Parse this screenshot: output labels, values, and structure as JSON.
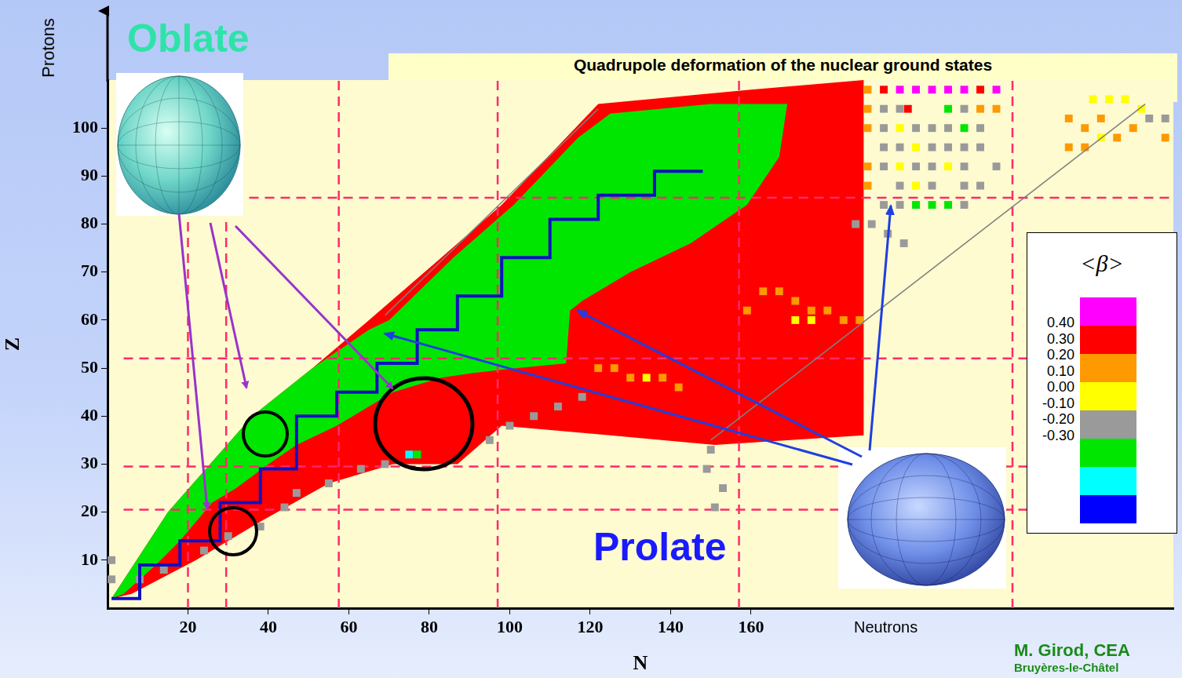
{
  "chart_data": {
    "type": "scatter",
    "title": "Quadrupole deformation of the nuclear ground states",
    "x_label": "N",
    "y_label": "Z",
    "xlim": [
      0,
      265
    ],
    "ylim": [
      0,
      110
    ],
    "xticks": [
      20,
      40,
      60,
      80,
      100,
      120,
      140,
      160
    ],
    "yticks": [
      10,
      20,
      30,
      40,
      50,
      60,
      70,
      80,
      90,
      100
    ],
    "grid": false,
    "annotations": [
      "Oblate",
      "Prolate",
      "Protons",
      "Neutrons",
      "M. Girod, CEA",
      "Bruyères-le-Châtel"
    ],
    "colorbar": {
      "title": "<β>",
      "colors": [
        "#ff00ff",
        "#ff0000",
        "#ff9900",
        "#ffff00",
        "#9a9a9a",
        "#00e600",
        "#00ffff",
        "#0000ff"
      ],
      "ticks": [
        {
          "value": 0.4,
          "label": "0.40"
        },
        {
          "value": 0.3,
          "label": "0.30"
        },
        {
          "value": 0.2,
          "label": "0.20"
        },
        {
          "value": 0.1,
          "label": "0.10"
        },
        {
          "value": 0,
          "label": "0.00"
        },
        {
          "value": -0.1,
          "label": "-0.10"
        },
        {
          "value": -0.2,
          "label": "-0.20"
        },
        {
          "value": -0.3,
          "label": "-0.30"
        }
      ]
    },
    "series": [
      {
        "type": "area",
        "color": "#ff0000",
        "values": [
          [
            1,
            2
          ],
          [
            15,
            20
          ],
          [
            36,
            40
          ],
          [
            51,
            50
          ],
          [
            65,
            60
          ],
          [
            83,
            73
          ],
          [
            98,
            84
          ],
          [
            114,
            98
          ],
          [
            122,
            105
          ],
          [
            160,
            108
          ],
          [
            188,
            110
          ],
          [
            188,
            36
          ],
          [
            151,
            34
          ],
          [
            125,
            36
          ],
          [
            98,
            38
          ],
          [
            87,
            30
          ],
          [
            71,
            30
          ],
          [
            55,
            26
          ],
          [
            38,
            18
          ],
          [
            22,
            10
          ],
          [
            6,
            3
          ]
        ]
      },
      {
        "type": "area",
        "color": "#00e600",
        "values": [
          [
            1,
            2
          ],
          [
            15,
            20
          ],
          [
            36,
            40
          ],
          [
            51,
            50
          ],
          [
            65,
            58
          ],
          [
            70,
            60
          ],
          [
            86,
            73
          ],
          [
            101,
            84
          ],
          [
            117,
            98
          ],
          [
            125,
            103
          ],
          [
            150,
            105
          ],
          [
            169,
            105
          ],
          [
            167,
            94
          ],
          [
            159,
            84
          ],
          [
            145,
            76
          ],
          [
            130,
            70
          ],
          [
            118,
            64
          ],
          [
            115,
            62
          ],
          [
            114,
            51
          ],
          [
            102,
            50
          ],
          [
            91,
            49
          ],
          [
            83,
            48
          ],
          [
            71,
            45
          ],
          [
            65,
            42
          ],
          [
            57,
            38
          ],
          [
            47,
            34
          ],
          [
            40,
            30
          ],
          [
            32,
            25
          ],
          [
            26,
            22
          ],
          [
            18,
            14
          ],
          [
            12,
            9
          ],
          [
            4,
            3
          ]
        ]
      },
      {
        "type": "line",
        "color": "#1010c0",
        "line_style": "stepped",
        "values": [
          [
            1,
            2
          ],
          [
            8,
            9
          ],
          [
            18,
            14
          ],
          [
            28,
            22
          ],
          [
            38,
            29
          ],
          [
            47,
            40
          ],
          [
            57,
            45
          ],
          [
            67,
            51
          ],
          [
            77,
            58
          ],
          [
            87,
            65
          ],
          [
            98,
            73
          ],
          [
            110,
            81
          ],
          [
            122,
            86
          ],
          [
            136,
            91
          ],
          [
            148,
            91
          ]
        ]
      },
      {
        "type": "line",
        "color": "#808080",
        "line_style": "solid",
        "values": [
          [
            69,
            61
          ],
          [
            122,
            104
          ]
        ]
      },
      {
        "type": "line",
        "color": "#808080",
        "line_style": "solid",
        "values": [
          [
            150,
            35
          ],
          [
            258,
            105
          ]
        ]
      },
      {
        "type": "scatter",
        "color": "#9a9a9a",
        "marker": "square",
        "values": [
          [
            1,
            6
          ],
          [
            1,
            10
          ],
          [
            8,
            6
          ],
          [
            14,
            8
          ],
          [
            24,
            12
          ],
          [
            30,
            15
          ],
          [
            38,
            17
          ],
          [
            44,
            21
          ],
          [
            47,
            24
          ],
          [
            55,
            26
          ],
          [
            63,
            29
          ],
          [
            69,
            30
          ],
          [
            95,
            35
          ],
          [
            100,
            38
          ],
          [
            106,
            40
          ],
          [
            112,
            42
          ],
          [
            118,
            44
          ],
          [
            150,
            33
          ],
          [
            149,
            29
          ],
          [
            153,
            25
          ],
          [
            151,
            21
          ],
          [
            193,
            104
          ],
          [
            197,
            104
          ],
          [
            213,
            104
          ],
          [
            193,
            100
          ],
          [
            201,
            100
          ],
          [
            205,
            100
          ],
          [
            209,
            100
          ],
          [
            217,
            100
          ],
          [
            193,
            96
          ],
          [
            197,
            96
          ],
          [
            205,
            96
          ],
          [
            209,
            96
          ],
          [
            213,
            96
          ],
          [
            217,
            96
          ],
          [
            193,
            92
          ],
          [
            201,
            92
          ],
          [
            205,
            92
          ],
          [
            213,
            92
          ],
          [
            221,
            92
          ],
          [
            197,
            88
          ],
          [
            205,
            88
          ],
          [
            213,
            88
          ],
          [
            217,
            88
          ],
          [
            193,
            84
          ],
          [
            197,
            84
          ],
          [
            213,
            84
          ],
          [
            186,
            80
          ],
          [
            190,
            80
          ],
          [
            194,
            78
          ],
          [
            198,
            76
          ],
          [
            259,
            102
          ],
          [
            263,
            102
          ]
        ]
      },
      {
        "type": "scatter",
        "color": "#ff9900",
        "marker": "square",
        "values": [
          [
            189,
            108
          ],
          [
            189,
            104
          ],
          [
            189,
            100
          ],
          [
            189,
            92
          ],
          [
            189,
            88
          ],
          [
            163,
            66
          ],
          [
            167,
            66
          ],
          [
            171,
            64
          ],
          [
            175,
            62
          ],
          [
            179,
            62
          ],
          [
            183,
            60
          ],
          [
            187,
            60
          ],
          [
            159,
            62
          ],
          [
            122,
            50
          ],
          [
            126,
            50
          ],
          [
            130,
            48
          ],
          [
            138,
            48
          ],
          [
            142,
            46
          ],
          [
            217,
            104
          ],
          [
            221,
            104
          ],
          [
            239,
            102
          ],
          [
            243,
            100
          ],
          [
            247,
            102
          ],
          [
            251,
            98
          ],
          [
            255,
            100
          ],
          [
            263,
            98
          ],
          [
            239,
            96
          ],
          [
            243,
            96
          ]
        ]
      },
      {
        "type": "scatter",
        "color": "#ffff00",
        "marker": "square",
        "values": [
          [
            197,
            92
          ],
          [
            201,
            96
          ],
          [
            197,
            100
          ],
          [
            201,
            88
          ],
          [
            209,
            92
          ],
          [
            245,
            106
          ],
          [
            249,
            106
          ],
          [
            253,
            106
          ],
          [
            257,
            104
          ],
          [
            247,
            98
          ],
          [
            171,
            60
          ],
          [
            175,
            60
          ],
          [
            134,
            48
          ]
        ]
      },
      {
        "type": "scatter",
        "color": "#00e600",
        "marker": "square",
        "values": [
          [
            201,
            84
          ],
          [
            205,
            84
          ],
          [
            209,
            84
          ],
          [
            209,
            104
          ],
          [
            213,
            100
          ],
          [
            77,
            32
          ]
        ]
      },
      {
        "type": "scatter",
        "color": "#ff00ff",
        "marker": "square",
        "values": [
          [
            197,
            108
          ],
          [
            201,
            108
          ],
          [
            205,
            108
          ],
          [
            209,
            108
          ],
          [
            213,
            108
          ],
          [
            221,
            108
          ]
        ]
      },
      {
        "type": "scatter",
        "color": "#ff0000",
        "marker": "square",
        "values": [
          [
            193,
            108
          ],
          [
            217,
            108
          ],
          [
            199,
            104
          ],
          [
            79,
            32
          ]
        ]
      },
      {
        "type": "scatter",
        "color": "#00ffff",
        "marker": "square",
        "values": [
          [
            75,
            32
          ]
        ]
      },
      {
        "type": "line",
        "color": "#ff2a6d",
        "line_style": "dashed",
        "values": [
          [
            20,
            0
          ],
          [
            20,
            110
          ]
        ]
      },
      {
        "type": "line",
        "color": "#ff2a6d",
        "line_style": "dashed",
        "values": [
          [
            29.5,
            0
          ],
          [
            29.5,
            110
          ]
        ]
      },
      {
        "type": "line",
        "color": "#ff2a6d",
        "line_style": "dashed",
        "values": [
          [
            57.5,
            0
          ],
          [
            57.5,
            110
          ]
        ]
      },
      {
        "type": "line",
        "color": "#ff2a6d",
        "line_style": "dashed",
        "values": [
          [
            97,
            0
          ],
          [
            97,
            110
          ]
        ]
      },
      {
        "type": "line",
        "color": "#ff2a6d",
        "line_style": "dashed",
        "values": [
          [
            157,
            0
          ],
          [
            157,
            110
          ]
        ]
      },
      {
        "type": "line",
        "color": "#ff2a6d",
        "line_style": "dashed",
        "values": [
          [
            225,
            0
          ],
          [
            225,
            110
          ]
        ]
      },
      {
        "type": "line",
        "color": "#ff2a6d",
        "line_style": "dashed",
        "values": [
          [
            4,
            20.5
          ],
          [
            265,
            20.5
          ]
        ]
      },
      {
        "type": "line",
        "color": "#ff2a6d",
        "line_style": "dashed",
        "values": [
          [
            4,
            29.5
          ],
          [
            265,
            29.5
          ]
        ]
      },
      {
        "type": "line",
        "color": "#ff2a6d",
        "line_style": "dashed",
        "values": [
          [
            4,
            52
          ],
          [
            265,
            52
          ]
        ]
      },
      {
        "type": "line",
        "color": "#ff2a6d",
        "line_style": "dashed",
        "values": [
          [
            4,
            85.5
          ],
          [
            265,
            85.5
          ]
        ]
      }
    ]
  }
}
